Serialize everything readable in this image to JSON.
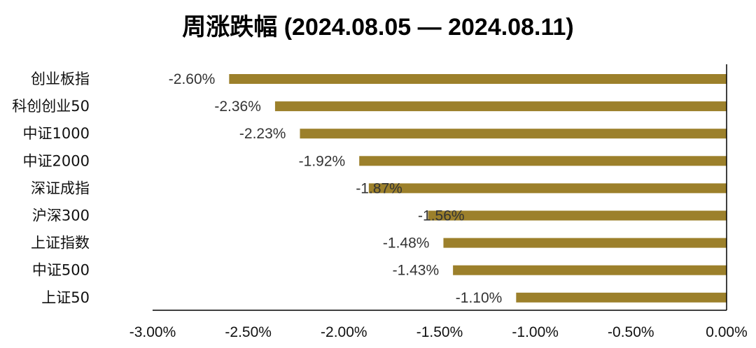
{
  "chart_data": {
    "type": "bar",
    "orientation": "horizontal",
    "title": "周涨跌幅 (2024.08.05 — 2024.08.11)",
    "categories": [
      "创业板指",
      "科创创业50",
      "中证1000",
      "中证2000",
      "深证成指",
      "沪深300",
      "上证指数",
      "中证500",
      "上证50"
    ],
    "values": [
      -2.6,
      -2.36,
      -2.23,
      -1.92,
      -1.87,
      -1.56,
      -1.48,
      -1.43,
      -1.1
    ],
    "data_labels": [
      "-2.60%",
      "-2.36%",
      "-2.23%",
      "-1.92%",
      "-1.87%",
      "-1.56%",
      "-1.48%",
      "-1.43%",
      "-1.10%"
    ],
    "x_ticks": [
      -3.0,
      -2.5,
      -2.0,
      -1.5,
      -1.0,
      -0.5,
      0.0
    ],
    "x_tick_labels": [
      "-3.00%",
      "-2.50%",
      "-2.00%",
      "-1.50%",
      "-1.00%",
      "-0.50%",
      "0.00%"
    ],
    "xlim": [
      -3.0,
      0.0
    ],
    "xlabel": "",
    "ylabel": "",
    "grid": false,
    "legend": "none",
    "bar_color": "#9c802b",
    "axis_color": "#000000"
  }
}
